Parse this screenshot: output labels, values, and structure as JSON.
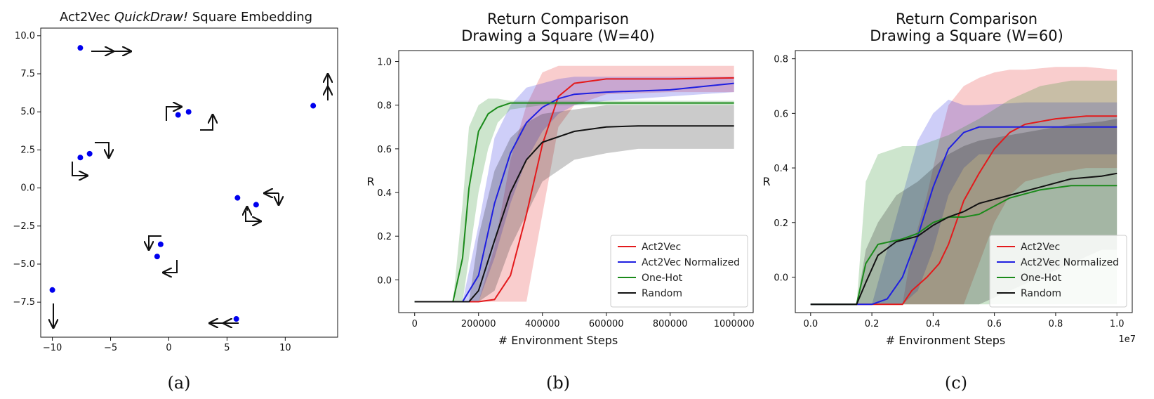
{
  "chart_data": [
    {
      "id": "a",
      "type": "scatter",
      "title_prefix": "Act2Vec ",
      "title_italic": "QuickDraw!",
      "title_suffix": " Square Embedding",
      "xlim": [
        -11,
        14.5
      ],
      "ylim": [
        -9.8,
        10.5
      ],
      "xticks": [
        -10,
        -5,
        0,
        5,
        10
      ],
      "yticks": [
        -7.5,
        -5.0,
        -2.5,
        0.0,
        2.5,
        5.0,
        7.5,
        10.0
      ],
      "xtick_labels": [
        "−10",
        "−5",
        "0",
        "5",
        "10"
      ],
      "ytick_labels": [
        "−7.5",
        "−5.0",
        "−2.5",
        "0.0",
        "2.5",
        "5.0",
        "7.5",
        "10.0"
      ],
      "point_color": "#0000ee",
      "points": [
        {
          "x": -7.6,
          "y": 9.2
        },
        {
          "x": 12.4,
          "y": 5.4
        },
        {
          "x": 0.8,
          "y": 4.8
        },
        {
          "x": 1.7,
          "y": 5.0
        },
        {
          "x": -7.6,
          "y": 2.0
        },
        {
          "x": -6.8,
          "y": 2.25
        },
        {
          "x": 5.9,
          "y": -0.65
        },
        {
          "x": 7.5,
          "y": -1.1
        },
        {
          "x": -0.7,
          "y": -3.7
        },
        {
          "x": -1.0,
          "y": -4.5
        },
        {
          "x": -10.0,
          "y": -6.7
        },
        {
          "x": 5.8,
          "y": -8.6
        }
      ],
      "caption": "(a)"
    },
    {
      "id": "b",
      "type": "line",
      "title": "Return Comparison",
      "subtitle": "Drawing a Square (W=40)",
      "xlabel": "# Environment Steps",
      "ylabel": "R",
      "xlim": [
        -50000,
        1060000
      ],
      "ylim": [
        -0.15,
        1.05
      ],
      "xticks": [
        0,
        200000,
        400000,
        600000,
        800000,
        1000000
      ],
      "yticks": [
        0.0,
        0.2,
        0.4,
        0.6,
        0.8,
        1.0
      ],
      "xtick_labels": [
        "0",
        "200000",
        "400000",
        "600000",
        "800000",
        "1000000"
      ],
      "ytick_labels": [
        "0.0",
        "0.2",
        "0.4",
        "0.6",
        "0.8",
        "1.0"
      ],
      "legend_position": "bottom-right",
      "series": [
        {
          "name": "Act2Vec",
          "color": "#e31a1c",
          "x": [
            0,
            200000,
            250000,
            300000,
            350000,
            400000,
            450000,
            500000,
            600000,
            800000,
            1000000
          ],
          "y": [
            -0.1,
            -0.1,
            -0.09,
            0.02,
            0.3,
            0.62,
            0.84,
            0.9,
            0.92,
            0.92,
            0.925
          ],
          "lower": [
            -0.1,
            -0.1,
            -0.1,
            -0.1,
            -0.1,
            0.3,
            0.7,
            0.8,
            0.85,
            0.86,
            0.86
          ],
          "upper": [
            -0.1,
            -0.1,
            0.15,
            0.55,
            0.8,
            0.95,
            0.98,
            0.98,
            0.98,
            0.98,
            0.98
          ]
        },
        {
          "name": "Act2Vec Normalized",
          "color": "#1f1fe0",
          "x": [
            0,
            150000,
            200000,
            250000,
            300000,
            350000,
            400000,
            450000,
            500000,
            600000,
            800000,
            1000000
          ],
          "y": [
            -0.1,
            -0.1,
            0.02,
            0.35,
            0.58,
            0.72,
            0.79,
            0.83,
            0.85,
            0.86,
            0.87,
            0.9
          ],
          "lower": [
            -0.1,
            -0.1,
            -0.1,
            0.1,
            0.35,
            0.55,
            0.68,
            0.76,
            0.8,
            0.82,
            0.84,
            0.86
          ],
          "upper": [
            -0.1,
            -0.1,
            0.25,
            0.65,
            0.8,
            0.88,
            0.9,
            0.92,
            0.93,
            0.93,
            0.93,
            0.93
          ]
        },
        {
          "name": "One-Hot",
          "color": "#1a8a1a",
          "x": [
            0,
            120000,
            150000,
            170000,
            200000,
            230000,
            260000,
            300000,
            400000,
            600000,
            1000000
          ],
          "y": [
            -0.1,
            -0.1,
            0.1,
            0.42,
            0.68,
            0.76,
            0.79,
            0.81,
            0.81,
            0.81,
            0.81
          ],
          "lower": [
            -0.1,
            -0.1,
            -0.1,
            0.1,
            0.4,
            0.6,
            0.72,
            0.78,
            0.8,
            0.8,
            0.8
          ],
          "upper": [
            -0.1,
            -0.1,
            0.35,
            0.7,
            0.8,
            0.83,
            0.83,
            0.82,
            0.82,
            0.82,
            0.82
          ]
        },
        {
          "name": "Random",
          "color": "#111111",
          "x": [
            0,
            170000,
            200000,
            250000,
            300000,
            350000,
            400000,
            500000,
            600000,
            700000,
            1000000
          ],
          "y": [
            -0.1,
            -0.1,
            -0.05,
            0.18,
            0.4,
            0.55,
            0.63,
            0.68,
            0.7,
            0.705,
            0.705
          ],
          "lower": [
            -0.1,
            -0.1,
            -0.1,
            -0.05,
            0.15,
            0.3,
            0.45,
            0.55,
            0.58,
            0.6,
            0.6
          ],
          "upper": [
            -0.1,
            -0.1,
            0.2,
            0.5,
            0.65,
            0.72,
            0.76,
            0.78,
            0.8,
            0.8,
            0.8
          ]
        }
      ],
      "caption": "(b)"
    },
    {
      "id": "c",
      "type": "line",
      "title": "Return Comparison",
      "subtitle": "Drawing a Square (W=60)",
      "xlabel": "# Environment Steps",
      "ylabel": "R",
      "x_offset_label": "1e7",
      "xlim": [
        -0.05,
        1.05
      ],
      "ylim": [
        -0.13,
        0.83
      ],
      "xticks": [
        0.0,
        0.2,
        0.4,
        0.6,
        0.8,
        1.0
      ],
      "yticks": [
        0.0,
        0.2,
        0.4,
        0.6,
        0.8
      ],
      "xtick_labels": [
        "0.0",
        "0.2",
        "0.4",
        "0.6",
        "0.8",
        "1.0"
      ],
      "ytick_labels": [
        "0.0",
        "0.2",
        "0.4",
        "0.6",
        "0.8"
      ],
      "legend_position": "bottom-right",
      "series": [
        {
          "name": "Act2Vec",
          "color": "#e31a1c",
          "x": [
            0.0,
            0.3,
            0.33,
            0.38,
            0.42,
            0.45,
            0.5,
            0.55,
            0.6,
            0.65,
            0.7,
            0.8,
            0.9,
            1.0
          ],
          "y": [
            -0.1,
            -0.1,
            -0.05,
            0.0,
            0.05,
            0.12,
            0.28,
            0.38,
            0.47,
            0.53,
            0.56,
            0.58,
            0.59,
            0.59
          ],
          "lower": [
            -0.1,
            -0.1,
            -0.1,
            -0.1,
            -0.1,
            -0.1,
            -0.1,
            0.05,
            0.2,
            0.3,
            0.35,
            0.38,
            0.4,
            0.4
          ],
          "upper": [
            -0.1,
            -0.1,
            0.1,
            0.3,
            0.5,
            0.63,
            0.7,
            0.73,
            0.75,
            0.76,
            0.76,
            0.77,
            0.77,
            0.76
          ]
        },
        {
          "name": "Act2Vec Normalized",
          "color": "#1f1fe0",
          "x": [
            0.0,
            0.2,
            0.25,
            0.3,
            0.35,
            0.4,
            0.45,
            0.5,
            0.55,
            0.7,
            1.0
          ],
          "y": [
            -0.1,
            -0.1,
            -0.08,
            0.0,
            0.15,
            0.33,
            0.47,
            0.53,
            0.55,
            0.55,
            0.55
          ],
          "lower": [
            -0.1,
            -0.1,
            -0.1,
            -0.1,
            -0.05,
            0.1,
            0.3,
            0.4,
            0.45,
            0.45,
            0.45
          ],
          "upper": [
            -0.1,
            -0.1,
            0.1,
            0.3,
            0.5,
            0.6,
            0.65,
            0.63,
            0.63,
            0.64,
            0.64
          ]
        },
        {
          "name": "One-Hot",
          "color": "#1a8a1a",
          "x": [
            0.0,
            0.15,
            0.18,
            0.22,
            0.3,
            0.35,
            0.4,
            0.45,
            0.5,
            0.55,
            0.65,
            0.75,
            0.85,
            1.0
          ],
          "y": [
            -0.1,
            -0.1,
            0.05,
            0.12,
            0.14,
            0.16,
            0.2,
            0.22,
            0.22,
            0.23,
            0.29,
            0.32,
            0.335,
            0.335
          ],
          "lower": [
            -0.1,
            -0.1,
            -0.1,
            -0.1,
            -0.1,
            -0.1,
            -0.1,
            -0.1,
            -0.1,
            -0.1,
            -0.1,
            -0.1,
            -0.1,
            -0.1
          ],
          "upper": [
            -0.1,
            -0.1,
            0.35,
            0.45,
            0.48,
            0.48,
            0.5,
            0.52,
            0.55,
            0.58,
            0.65,
            0.7,
            0.72,
            0.72
          ]
        },
        {
          "name": "Random",
          "color": "#111111",
          "x": [
            0.0,
            0.15,
            0.18,
            0.22,
            0.28,
            0.35,
            0.4,
            0.45,
            0.5,
            0.55,
            0.65,
            0.75,
            0.85,
            0.95,
            1.0
          ],
          "y": [
            -0.1,
            -0.1,
            -0.02,
            0.08,
            0.13,
            0.15,
            0.19,
            0.22,
            0.24,
            0.27,
            0.3,
            0.33,
            0.36,
            0.37,
            0.38
          ],
          "lower": [
            -0.1,
            -0.1,
            -0.1,
            -0.1,
            -0.1,
            -0.1,
            -0.1,
            -0.1,
            -0.1,
            -0.1,
            -0.05,
            0.0,
            0.05,
            0.1,
            0.1
          ],
          "upper": [
            -0.1,
            -0.1,
            0.1,
            0.2,
            0.3,
            0.35,
            0.4,
            0.45,
            0.48,
            0.5,
            0.52,
            0.54,
            0.56,
            0.57,
            0.58
          ]
        }
      ],
      "caption": "(c)"
    }
  ]
}
